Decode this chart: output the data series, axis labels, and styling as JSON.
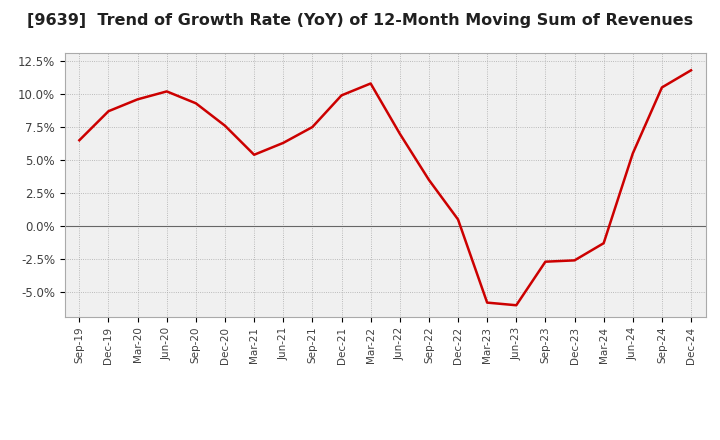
{
  "title": "[9639]  Trend of Growth Rate (YoY) of 12-Month Moving Sum of Revenues",
  "title_fontsize": 11.5,
  "background_color": "#ffffff",
  "plot_bg_color": "#f0f0f0",
  "line_color": "#cc0000",
  "grid_color": "#aaaaaa",
  "x_labels": [
    "Sep-19",
    "Dec-19",
    "Mar-20",
    "Jun-20",
    "Sep-20",
    "Dec-20",
    "Mar-21",
    "Jun-21",
    "Sep-21",
    "Dec-21",
    "Mar-22",
    "Jun-22",
    "Sep-22",
    "Dec-22",
    "Mar-23",
    "Jun-23",
    "Sep-23",
    "Dec-23",
    "Mar-24",
    "Jun-24",
    "Sep-24",
    "Dec-24"
  ],
  "y_values": [
    6.5,
    8.7,
    9.6,
    10.2,
    9.3,
    7.6,
    5.4,
    6.3,
    7.5,
    9.9,
    10.8,
    7.0,
    3.5,
    0.5,
    -5.8,
    -6.0,
    -2.7,
    -2.6,
    -1.3,
    5.5,
    10.5,
    11.8
  ],
  "ylim": [
    -6.875,
    13.125
  ],
  "yticks": [
    -5.0,
    -2.5,
    0.0,
    2.5,
    5.0,
    7.5,
    10.0,
    12.5
  ],
  "ytick_labels": [
    "-5.0%",
    "-2.5%",
    "0.0%",
    "2.5%",
    "5.0%",
    "7.5%",
    "10.0%",
    "12.5%"
  ]
}
